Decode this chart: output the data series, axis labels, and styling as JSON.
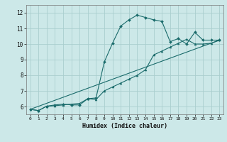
{
  "xlabel": "Humidex (Indice chaleur)",
  "background_color": "#cce8e8",
  "grid_color": "#aacece",
  "line_color": "#1a6b6b",
  "xlim": [
    -0.5,
    23.5
  ],
  "ylim": [
    5.5,
    12.5
  ],
  "xticks": [
    0,
    1,
    2,
    3,
    4,
    5,
    6,
    7,
    8,
    9,
    10,
    11,
    12,
    13,
    14,
    15,
    16,
    17,
    18,
    19,
    20,
    21,
    22,
    23
  ],
  "yticks": [
    6,
    7,
    8,
    9,
    10,
    11,
    12
  ],
  "series1_x": [
    0,
    1,
    2,
    3,
    4,
    5,
    6,
    7,
    8,
    9,
    10,
    11,
    12,
    13,
    14,
    15,
    16,
    17,
    18,
    19,
    20,
    21,
    22,
    23
  ],
  "series1_y": [
    5.82,
    5.74,
    6.02,
    6.1,
    6.15,
    6.1,
    6.1,
    6.5,
    6.55,
    8.85,
    10.05,
    11.15,
    11.55,
    11.85,
    11.7,
    11.55,
    11.45,
    10.15,
    10.35,
    10.0,
    10.75,
    10.25,
    10.25,
    10.25
  ],
  "series2_x": [
    0,
    1,
    2,
    3,
    4,
    5,
    6,
    7,
    8,
    9,
    10,
    11,
    12,
    13,
    14,
    15,
    16,
    17,
    18,
    19,
    20,
    21,
    22,
    23
  ],
  "series2_y": [
    5.82,
    5.74,
    6.02,
    6.05,
    6.1,
    6.15,
    6.2,
    6.5,
    6.45,
    7.0,
    7.25,
    7.5,
    7.75,
    8.0,
    8.35,
    9.3,
    9.55,
    9.8,
    10.05,
    10.3,
    10.0,
    10.0,
    10.05,
    10.25
  ],
  "series3_x": [
    0,
    23
  ],
  "series3_y": [
    5.82,
    10.25
  ]
}
